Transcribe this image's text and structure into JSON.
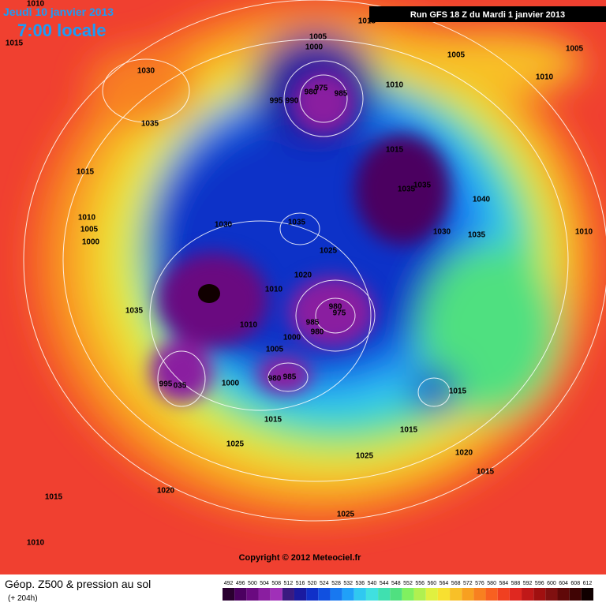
{
  "header": {
    "date": "Jeudi 10 janvier 2013",
    "time": "7:00 locale",
    "run": "Run GFS 18 Z du Mardi 1 janvier 2013"
  },
  "isobar_labels": [
    "1010",
    "1015",
    "1015",
    "1005",
    "1000",
    "1005",
    "1005",
    "1010",
    "1030",
    "1035",
    "975",
    "980",
    "985",
    "995",
    "990",
    "1010",
    "1015",
    "1035",
    "1035",
    "1040",
    "1015",
    "1010",
    "1005",
    "1000",
    "1030",
    "1035",
    "1030",
    "1035",
    "1010",
    "1025",
    "1020",
    "1010",
    "1035",
    "980",
    "975",
    "985",
    "980",
    "1010",
    "1000",
    "1005",
    "985",
    "980",
    "995",
    "035",
    "1000",
    "1015",
    "1015",
    "1015",
    "1025",
    "1025",
    "1020",
    "1015",
    "1020",
    "1015",
    "1025",
    "1010"
  ],
  "copyright": "Copyright © 2012 Meteociel.fr",
  "footer": {
    "title": "Géop. Z500 & pression au sol",
    "lead": "(+ 204h)"
  },
  "legend": {
    "ticks": [
      492,
      496,
      500,
      504,
      508,
      512,
      516,
      520,
      524,
      528,
      532,
      536,
      540,
      544,
      548,
      552,
      556,
      560,
      564,
      568,
      572,
      576,
      580,
      584,
      588,
      592,
      596,
      600,
      604,
      608,
      612
    ],
    "colors": [
      "#2a0030",
      "#4b0060",
      "#6a0a80",
      "#8a1ea0",
      "#a030b8",
      "#3a1a80",
      "#1a1aa0",
      "#1030c8",
      "#1050e0",
      "#1878f0",
      "#20a0f8",
      "#30c8f0",
      "#40e0e0",
      "#40e0b0",
      "#50e080",
      "#80f060",
      "#b0f050",
      "#e0f040",
      "#f8e030",
      "#f8c028",
      "#f8a020",
      "#f88020",
      "#f86020",
      "#f04020",
      "#e02820",
      "#c01818",
      "#a01010",
      "#801010",
      "#600808",
      "#400404",
      "#100000"
    ]
  }
}
